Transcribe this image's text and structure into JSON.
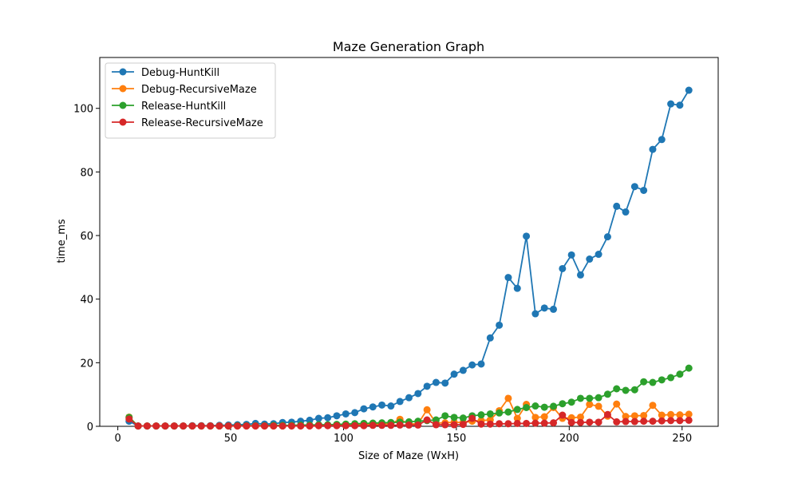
{
  "chart_data": {
    "type": "line",
    "title": "Maze Generation Graph",
    "xlabel": "Size of Maze (WxH)",
    "ylabel": "time_ms",
    "xlim": [
      -8,
      266
    ],
    "ylim": [
      0,
      116
    ],
    "xticks": [
      0,
      50,
      100,
      150,
      200,
      250
    ],
    "yticks": [
      0,
      20,
      40,
      60,
      80,
      100
    ],
    "grid": false,
    "legend_location": "upper left",
    "x": [
      5,
      9,
      13,
      17,
      21,
      25,
      29,
      33,
      37,
      41,
      45,
      49,
      53,
      57,
      61,
      65,
      69,
      73,
      77,
      81,
      85,
      89,
      93,
      97,
      101,
      105,
      109,
      113,
      117,
      121,
      125,
      129,
      133,
      137,
      141,
      145,
      149,
      153,
      157,
      161,
      165,
      169,
      173,
      177,
      181,
      185,
      189,
      193,
      197,
      201,
      205,
      209,
      213,
      217,
      221,
      225,
      229,
      233,
      237,
      241,
      245,
      249,
      253
    ],
    "series": [
      {
        "name": "Debug-HuntKill",
        "color": "#1f77b4",
        "values": [
          1.6,
          0.1,
          0.1,
          0.1,
          0.1,
          0.1,
          0.1,
          0.2,
          0.2,
          0.2,
          0.3,
          0.4,
          0.5,
          0.6,
          0.9,
          0.7,
          0.8,
          1.2,
          1.3,
          1.6,
          1.9,
          2.5,
          2.7,
          3.3,
          3.9,
          4.3,
          5.5,
          6.1,
          6.7,
          6.4,
          7.8,
          9.0,
          10.3,
          12.6,
          13.8,
          13.6,
          16.4,
          17.6,
          19.3,
          19.6,
          27.8,
          31.8,
          46.8,
          43.4,
          59.8,
          35.4,
          37.2,
          36.8,
          49.6,
          53.9,
          47.6,
          52.6,
          54.1,
          59.6,
          69.2,
          67.4,
          75.4,
          74.2,
          87.1,
          90.2,
          101.4,
          101.0,
          105.7
        ]
      },
      {
        "name": "Debug-RecursiveMaze",
        "color": "#ff7f0e",
        "values": [
          2.9,
          0.1,
          0.1,
          0.1,
          0.1,
          0.1,
          0.1,
          0.1,
          0.1,
          0.1,
          0.1,
          0.1,
          0.1,
          0.1,
          0.1,
          0.1,
          0.1,
          0.1,
          0.2,
          0.2,
          0.2,
          0.2,
          0.3,
          0.3,
          0.4,
          0.4,
          0.5,
          0.6,
          0.7,
          0.8,
          2.2,
          0.7,
          0.8,
          5.2,
          1.0,
          1.1,
          1.3,
          1.2,
          1.6,
          1.8,
          2.0,
          4.9,
          8.8,
          2.5,
          6.9,
          2.8,
          3.0,
          5.9,
          2.5,
          2.7,
          2.9,
          6.9,
          6.3,
          3.2,
          7.0,
          3.1,
          3.3,
          3.4,
          6.6,
          3.5,
          3.7,
          3.6,
          3.8
        ]
      },
      {
        "name": "Release-HuntKill",
        "color": "#2ca02c",
        "values": [
          2.8,
          0.1,
          0.1,
          0.1,
          0.1,
          0.1,
          0.1,
          0.1,
          0.1,
          0.1,
          0.1,
          0.1,
          0.2,
          0.2,
          0.2,
          0.2,
          0.3,
          0.3,
          0.3,
          0.4,
          0.4,
          0.5,
          0.5,
          0.6,
          0.7,
          0.8,
          0.9,
          1.0,
          1.1,
          1.2,
          1.3,
          1.4,
          1.6,
          1.8,
          2.0,
          3.3,
          2.8,
          2.6,
          3.3,
          3.6,
          3.9,
          4.2,
          4.5,
          5.3,
          5.9,
          6.4,
          6.0,
          6.3,
          7.1,
          7.6,
          8.8,
          8.8,
          9.0,
          10.1,
          11.8,
          11.3,
          11.5,
          14.0,
          13.8,
          14.6,
          15.3,
          16.4,
          18.3
        ]
      },
      {
        "name": "Release-RecursiveMaze",
        "color": "#d62728",
        "values": [
          2.3,
          0.1,
          0.1,
          0.1,
          0.1,
          0.1,
          0.1,
          0.1,
          0.1,
          0.1,
          0.1,
          0.1,
          0.1,
          0.1,
          0.1,
          0.1,
          0.1,
          0.1,
          0.1,
          0.1,
          0.1,
          0.2,
          0.2,
          0.2,
          0.2,
          0.2,
          0.2,
          0.3,
          0.3,
          0.3,
          0.4,
          0.4,
          0.4,
          2.0,
          0.5,
          0.5,
          0.5,
          0.6,
          2.5,
          0.7,
          0.7,
          0.8,
          0.8,
          0.9,
          0.9,
          1.0,
          1.0,
          1.1,
          3.5,
          1.2,
          1.2,
          1.3,
          1.3,
          3.7,
          1.4,
          1.5,
          1.5,
          1.6,
          1.6,
          1.7,
          1.8,
          1.8,
          1.9
        ]
      }
    ]
  }
}
